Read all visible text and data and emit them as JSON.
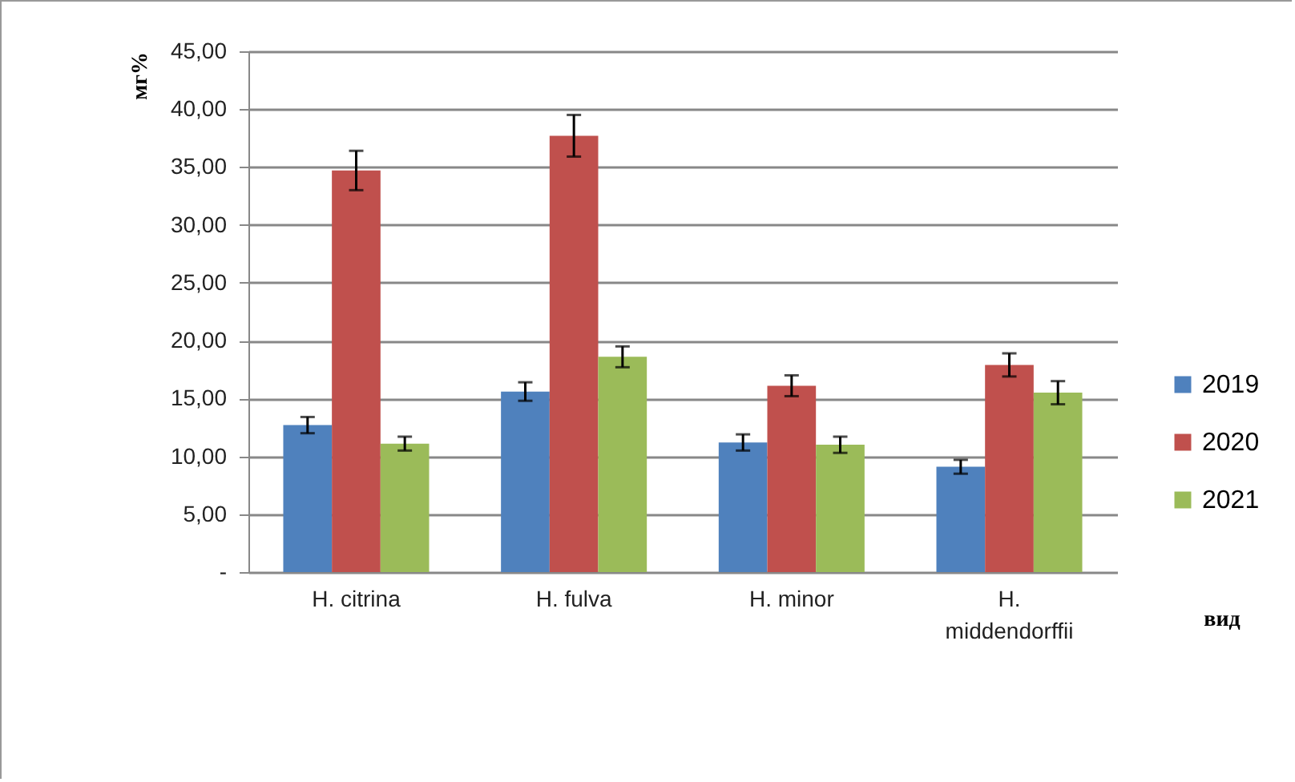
{
  "chart_data": {
    "type": "bar",
    "ylabel": "мг%",
    "xlabel": "вид",
    "categories": [
      "H. citrina",
      "H. fulva",
      "H. minor",
      "H. middendorffii"
    ],
    "series": [
      {
        "name": "2019",
        "color": "#4f81bd",
        "values": [
          12.7,
          15.6,
          11.2,
          9.1
        ],
        "errors": [
          0.7,
          0.8,
          0.7,
          0.6
        ]
      },
      {
        "name": "2020",
        "color": "#c0504d",
        "values": [
          34.7,
          37.7,
          16.1,
          17.9
        ],
        "errors": [
          1.7,
          1.8,
          0.9,
          1.0
        ]
      },
      {
        "name": "2021",
        "color": "#9bbb59",
        "values": [
          11.1,
          18.6,
          11.0,
          15.5
        ],
        "errors": [
          0.6,
          0.9,
          0.7,
          1.0
        ]
      }
    ],
    "ylim": [
      0,
      45
    ],
    "yticks": [
      {
        "value": 0,
        "label": "-"
      },
      {
        "value": 5,
        "label": "5,00"
      },
      {
        "value": 10,
        "label": "10,00"
      },
      {
        "value": 15,
        "label": "15,00"
      },
      {
        "value": 20,
        "label": "20,00"
      },
      {
        "value": 25,
        "label": "25,00"
      },
      {
        "value": 30,
        "label": "30,00"
      },
      {
        "value": 35,
        "label": "35,00"
      },
      {
        "value": 40,
        "label": "40,00"
      },
      {
        "value": 45,
        "label": "45,00"
      }
    ],
    "grid": "y",
    "legend": "right"
  }
}
